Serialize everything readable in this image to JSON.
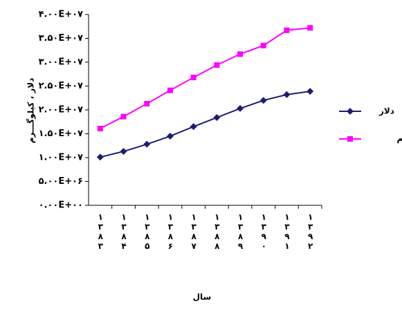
{
  "chart_data": {
    "type": "line",
    "y_label": "دلار ، کیلوگـــرم",
    "x_label": "سال",
    "categories": [
      "۱۳۸۳",
      "۱۳۸۴",
      "۱۳۸۵",
      "۱۳۸۶",
      "۱۳۸۷",
      "۱۳۸۸",
      "۱۳۸۹",
      "۱۳۹۰",
      "۱۳۹۱",
      "۱۳۹۲"
    ],
    "series": [
      {
        "name": "دلار",
        "color": "#1c1c73",
        "marker": "diamond",
        "values": [
          10100000,
          11300000,
          12800000,
          14500000,
          16500000,
          18400000,
          20300000,
          22000000,
          23200000,
          23900000
        ]
      },
      {
        "name": "کیلوگرم",
        "color": "#ff00ff",
        "marker": "square",
        "values": [
          16100000,
          18600000,
          21300000,
          24100000,
          26800000,
          29400000,
          31700000,
          33500000,
          36700000,
          37200000
        ]
      }
    ],
    "ylim": [
      0,
      40000000
    ],
    "yticks": [
      {
        "value": 0,
        "label": "۰.۰۰E+۰۰"
      },
      {
        "value": 5000000,
        "label": "۵.۰۰E+۰۶"
      },
      {
        "value": 10000000,
        "label": "۱.۰۰E+۰۷"
      },
      {
        "value": 15000000,
        "label": "۱.۵۰E+۰۷"
      },
      {
        "value": 20000000,
        "label": "۲.۰۰E+۰۷"
      },
      {
        "value": 25000000,
        "label": "۲.۵۰E+۰۷"
      },
      {
        "value": 30000000,
        "label": "۳.۰۰E+۰۷"
      },
      {
        "value": 35000000,
        "label": "۳.۵۰E+۰۷"
      },
      {
        "value": 40000000,
        "label": "۴.۰۰E+۰۷"
      }
    ],
    "grid": false,
    "legend": "right"
  }
}
